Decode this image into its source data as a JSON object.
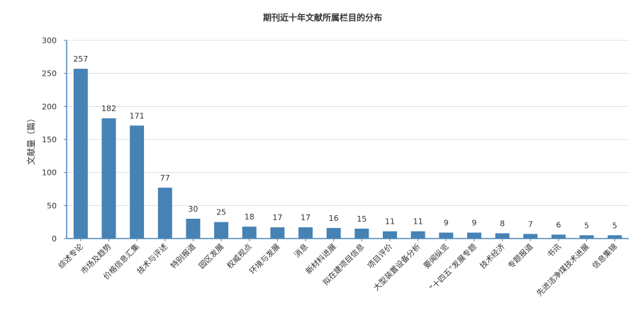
{
  "chart_data": {
    "type": "bar",
    "title": "期刊近十年文献所属栏目的分布",
    "xlabel": "",
    "ylabel": "文献量（篇）",
    "ylim": [
      0,
      300
    ],
    "yticks": [
      0,
      50,
      100,
      150,
      200,
      250,
      300
    ],
    "grid": true,
    "legend": "none",
    "categories": [
      "综述专论",
      "市场及趋势",
      "价格信息汇集",
      "技术与评述",
      "特别报道",
      "园区发展",
      "权威视点",
      "环境与发展",
      "消息",
      "新材料进展",
      "拟在建项目信息",
      "项目评价",
      "大型装置设备分析",
      "要闻纵览",
      "“十四五”发展专题",
      "技术经济",
      "专题报道",
      "书讯",
      "先进洁净煤技术进展",
      "信息集锦"
    ],
    "values": [
      257,
      182,
      171,
      77,
      30,
      25,
      18,
      17,
      17,
      16,
      15,
      11,
      11,
      9,
      9,
      8,
      7,
      6,
      5,
      5
    ],
    "colors": {
      "bar": "#4682b4",
      "axis": "#4a86b8",
      "grid": "#e0e0e0",
      "text": "#333333"
    }
  }
}
